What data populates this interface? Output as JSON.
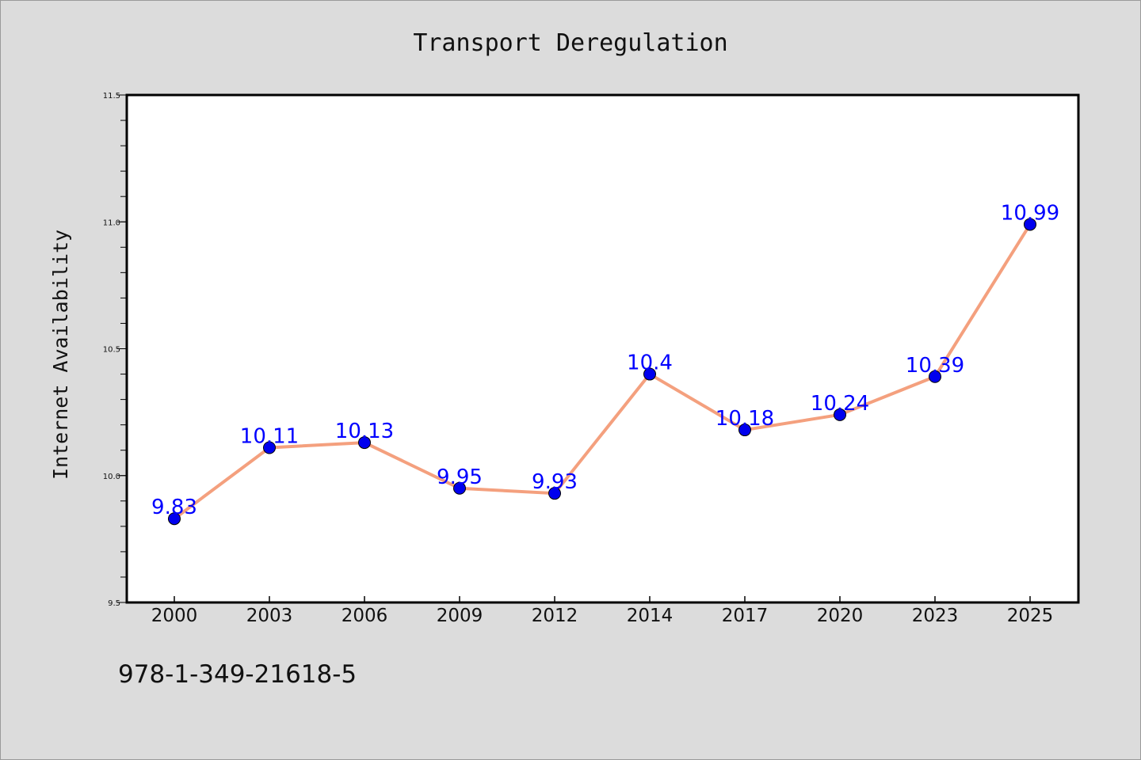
{
  "page": {
    "background": "#dcdcdc",
    "isbn_text": "978-1-349-21618-5"
  },
  "chart_data": {
    "type": "line",
    "title": "Transport Deregulation",
    "xlabel": "",
    "ylabel": "Internet Availability",
    "categories": [
      "2000",
      "2003",
      "2006",
      "2009",
      "2012",
      "2014",
      "2017",
      "2020",
      "2023",
      "2025"
    ],
    "series": [
      {
        "values": [
          9.83,
          10.11,
          10.13,
          9.95,
          9.93,
          10.4,
          10.18,
          10.24,
          10.39,
          10.99
        ],
        "labels": [
          "9.83",
          "10.11",
          "10.13",
          "9.95",
          "9.93",
          "10.4",
          "10.18",
          "10.24",
          "10.39",
          "10.99"
        ],
        "line_color": "#f4a07e",
        "marker_color": "#0000ee",
        "label_color": "#0000ff"
      }
    ],
    "ylim": [
      9.5,
      11.5
    ],
    "yticks": [
      "9.5",
      "10.0",
      "10.5",
      "11.0",
      "11.5"
    ],
    "ytick_values": [
      9.5,
      10.0,
      10.5,
      11.0,
      11.5
    ],
    "grid": false,
    "legend": "none",
    "plot_background": "#ffffff"
  }
}
